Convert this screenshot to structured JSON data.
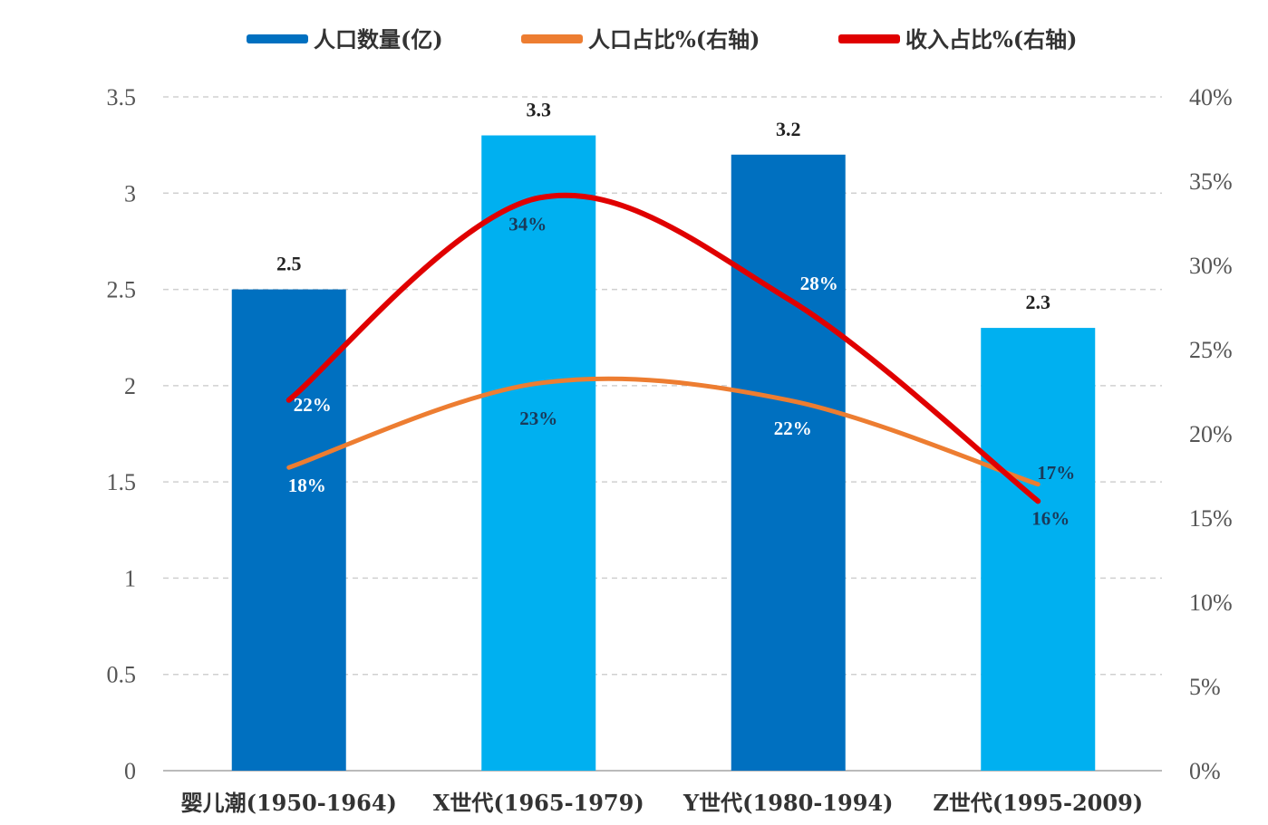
{
  "chart_data": {
    "type": "bar",
    "title": "",
    "categories": [
      "婴儿潮(1950-1964)",
      "X世代(1965-1979)",
      "Y世代(1980-1994)",
      "Z世代(1995-2009)"
    ],
    "series": [
      {
        "name": "人口数量(亿)",
        "type": "bar",
        "axis": "left",
        "values": [
          2.5,
          3.3,
          3.2,
          2.3
        ],
        "labels": [
          "2.5",
          "3.3",
          "3.2",
          "2.3"
        ],
        "colors": [
          "#0070C0",
          "#00B0F0",
          "#0070C0",
          "#00B0F0"
        ],
        "legend_color": "#0070C0"
      },
      {
        "name": "人口占比%(右轴)",
        "type": "line",
        "axis": "right",
        "values": [
          18,
          23,
          22,
          17
        ],
        "labels": [
          "18%",
          "23%",
          "22%",
          "17%"
        ],
        "color": "#ED7D31"
      },
      {
        "name": "收入占比%(右轴)",
        "type": "line",
        "axis": "right",
        "values": [
          22,
          34,
          28,
          16
        ],
        "labels": [
          "22%",
          "34%",
          "28%",
          "16%"
        ],
        "color": "#E00000"
      }
    ],
    "left_axis": {
      "ylim": [
        0,
        3.5
      ],
      "ticks": [
        "0",
        "0.5",
        "1",
        "1.5",
        "2",
        "2.5",
        "3",
        "3.5"
      ]
    },
    "right_axis": {
      "ylim": [
        0,
        40
      ],
      "ticks": [
        "0%",
        "5%",
        "10%",
        "15%",
        "20%",
        "25%",
        "30%",
        "35%",
        "40%"
      ]
    },
    "grid": true,
    "legend_position": "top"
  }
}
